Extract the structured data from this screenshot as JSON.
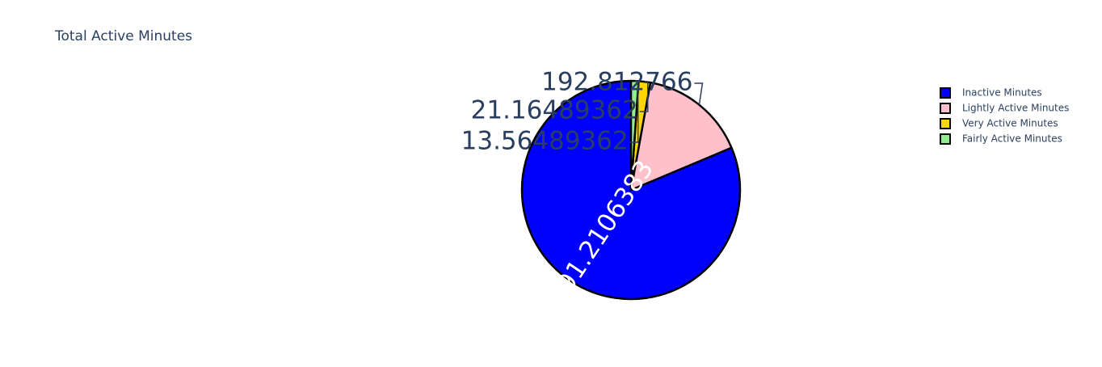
{
  "chart_data": {
    "type": "pie",
    "title": "Total Active Minutes",
    "labels": [
      "Inactive Minutes",
      "Lightly Active Minutes",
      "Very Active Minutes",
      "Fairly Active Minutes"
    ],
    "values": [
      991.2106383,
      192.812766,
      21.16489362,
      13.56489362
    ],
    "value_labels": [
      "991.2106383",
      "192.812766",
      "21.16489362",
      "13.56489362"
    ],
    "colors": [
      "#0000ff",
      "#ffc0cb",
      "#ffd700",
      "#90ee90"
    ],
    "slice_outline_color": "#000000",
    "legend": {
      "placement": "top-right",
      "entries": [
        "Inactive Minutes",
        "Lightly Active Minutes",
        "Very Active Minutes",
        "Fairly Active Minutes"
      ]
    },
    "direction": "counterclockwise",
    "start_angle": "12 o'clock"
  }
}
